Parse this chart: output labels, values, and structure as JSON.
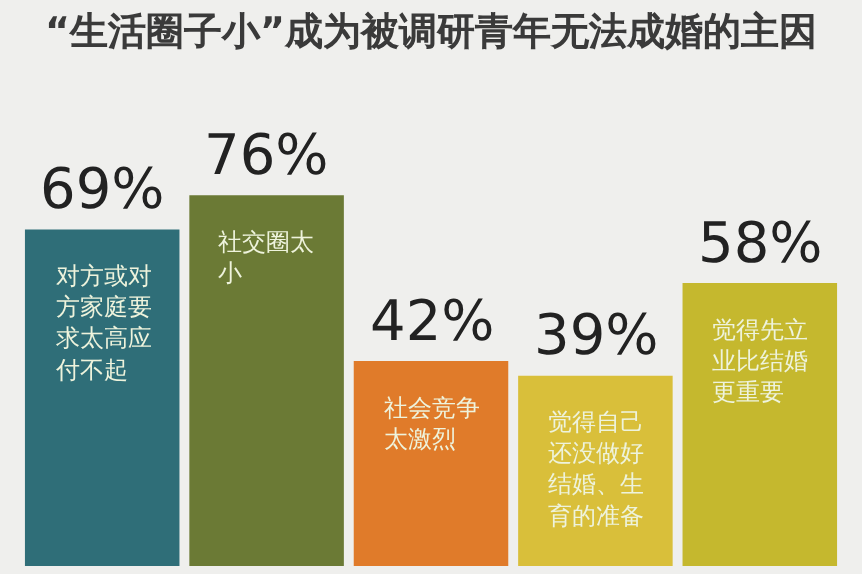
{
  "chart_data": {
    "type": "bar",
    "title": "“生活圈子小”成为被调研青年无法成婚的主因",
    "categories": [
      "对方或对方家庭要求太高应付不起",
      "社交圈太小",
      "社会竞争太激烈",
      "觉得自己还没做好结婚、生育的准备",
      "觉得先立业比结婚更重要"
    ],
    "values": [
      69,
      76,
      42,
      39,
      58
    ],
    "colors": [
      "#2f6e78",
      "#6b7a35",
      "#e07b2a",
      "#d9bf3a",
      "#c5b82e"
    ],
    "value_labels": [
      "69%",
      "76%",
      "42%",
      "39%",
      "58%"
    ],
    "grid": false,
    "legend": false
  }
}
